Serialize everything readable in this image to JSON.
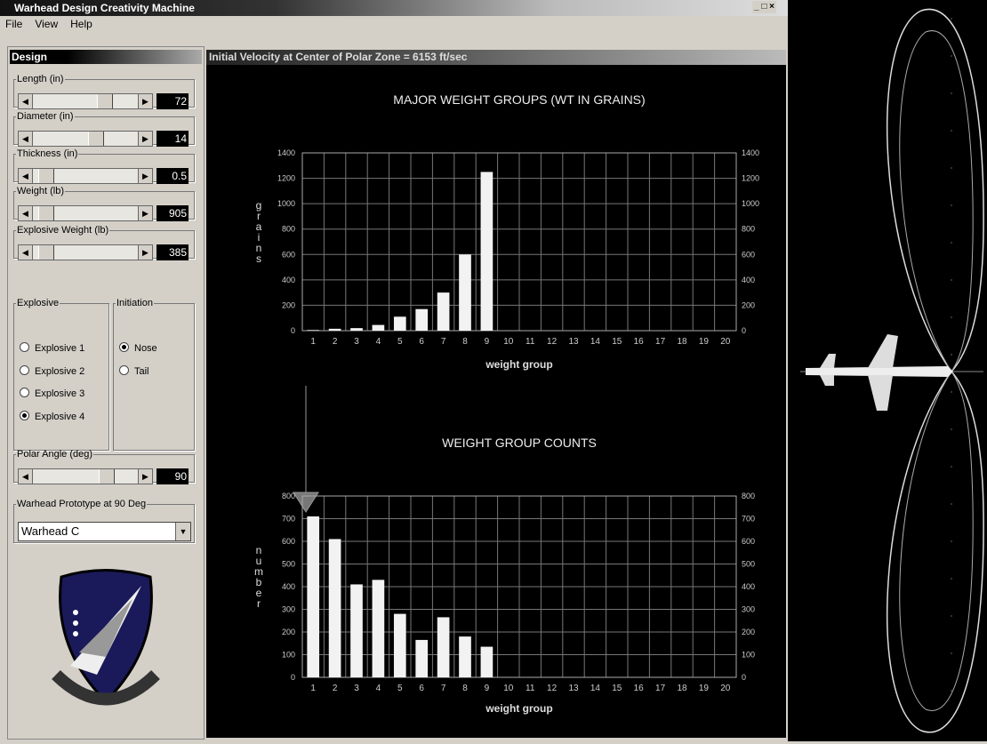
{
  "window": {
    "title": "Warhead Design Creativity Machine",
    "menu": [
      "File",
      "View",
      "Help"
    ]
  },
  "design": {
    "title": "Design",
    "sliders": [
      {
        "label": "Length (in)",
        "value": 72
      },
      {
        "label": "Diameter (in)",
        "value": 14
      },
      {
        "label": "Thickness (in)",
        "value": 0.5
      },
      {
        "label": "Weight (lb)",
        "value": 905
      },
      {
        "label": "Explosive Weight (lb)",
        "value": 385
      }
    ],
    "explosive": {
      "label": "Explosive",
      "options": [
        "Explosive 1",
        "Explosive 2",
        "Explosive 3",
        "Explosive 4"
      ],
      "selected": 3
    },
    "initiation": {
      "label": "Initiation",
      "options": [
        "Nose",
        "Tail"
      ],
      "selected": 0
    },
    "polar_angle": {
      "label": "Polar Angle (deg)",
      "value": 90
    },
    "prototype": {
      "label": "Warhead Prototype at 90 Deg",
      "value": "Warhead C"
    }
  },
  "panel": {
    "title": "Initial Velocity at Center of Polar Zone = 6153 ft/sec"
  },
  "chart_data": [
    {
      "type": "bar",
      "title": "MAJOR WEIGHT GROUPS (WT IN GRAINS)",
      "x_label": "weight group",
      "y_label": "grains",
      "categories": [
        "1",
        "2",
        "3",
        "4",
        "5",
        "6",
        "7",
        "8",
        "9",
        "10",
        "11",
        "12",
        "13",
        "14",
        "15",
        "16",
        "17",
        "18",
        "19",
        "20"
      ],
      "values": [
        5,
        15,
        20,
        45,
        110,
        170,
        300,
        600,
        1250,
        0,
        0,
        0,
        0,
        0,
        0,
        0,
        0,
        0,
        0,
        0
      ],
      "color": "#f2f2f2",
      "ylim": [
        0,
        1400
      ],
      "yticks": [
        0,
        200,
        400,
        600,
        800,
        1000,
        1200,
        1400
      ],
      "grid": true
    },
    {
      "type": "bar",
      "title": "WEIGHT GROUP COUNTS",
      "x_label": "weight group",
      "y_label": "number",
      "categories": [
        "1",
        "2",
        "3",
        "4",
        "5",
        "6",
        "7",
        "8",
        "9",
        "10",
        "11",
        "12",
        "13",
        "14",
        "15",
        "16",
        "17",
        "18",
        "19",
        "20"
      ],
      "values": [
        710,
        610,
        410,
        430,
        280,
        165,
        265,
        180,
        135,
        0,
        0,
        0,
        0,
        0,
        0,
        0,
        0,
        0,
        0,
        0
      ],
      "color": "#f2f2f2",
      "ylim": [
        0,
        800
      ],
      "yticks": [
        0,
        100,
        200,
        300,
        400,
        500,
        600,
        700,
        800
      ],
      "grid": true
    }
  ]
}
